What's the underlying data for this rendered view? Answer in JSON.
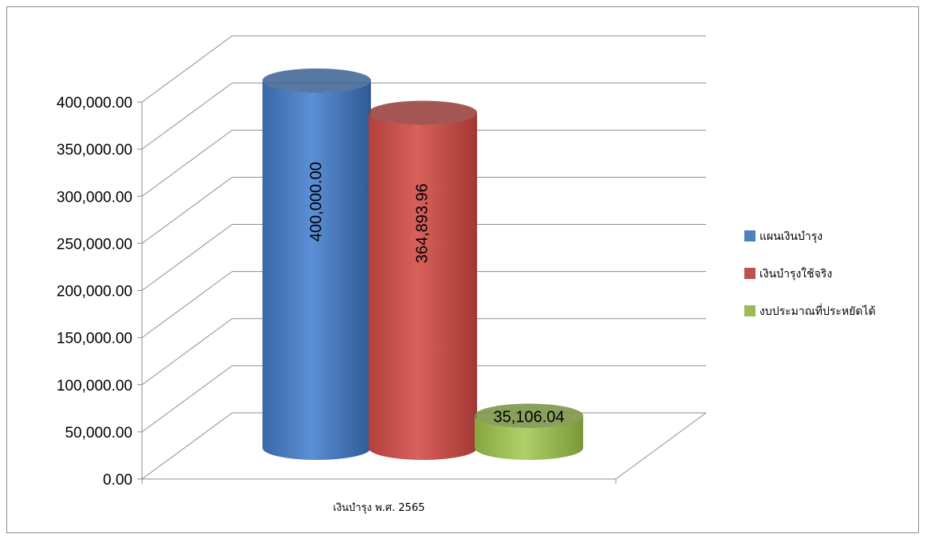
{
  "chart_data": {
    "type": "bar",
    "style": "3d-cylinder",
    "categories": [
      "เงินบำรุง พ.ศ. 2565"
    ],
    "series": [
      {
        "name": "แผนเงินบำรุง",
        "values": [
          400000.0
        ],
        "label": "400,000.00",
        "color": "#4f81bd"
      },
      {
        "name": "เงินบำรุงใช้จริง",
        "values": [
          364893.96
        ],
        "label": "364,893.96",
        "color": "#c0504d"
      },
      {
        "name": "งบประมาณที่ประหยัดได้",
        "values": [
          35106.04
        ],
        "label": "35,106.04",
        "color": "#9bbb59"
      }
    ],
    "ylim": [
      0,
      400000
    ],
    "yticks": [
      {
        "value": 0,
        "label": "0.00"
      },
      {
        "value": 50000,
        "label": "50,000.00"
      },
      {
        "value": 100000,
        "label": "100,000.00"
      },
      {
        "value": 150000,
        "label": "150,000.00"
      },
      {
        "value": 200000,
        "label": "200,000.00"
      },
      {
        "value": 250000,
        "label": "250,000.00"
      },
      {
        "value": 300000,
        "label": "300,000.00"
      },
      {
        "value": 350000,
        "label": "350,000.00"
      },
      {
        "value": 400000,
        "label": "400,000.00"
      }
    ],
    "grid": true,
    "legend_position": "right"
  }
}
